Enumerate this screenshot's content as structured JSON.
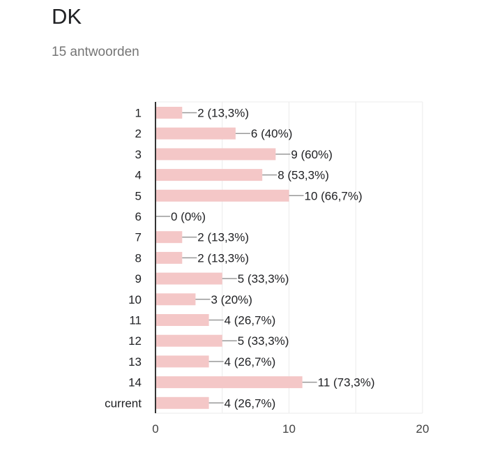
{
  "header": {
    "title": "DK",
    "response_count": "15 antwoorden"
  },
  "colors": {
    "bar": "#f4c7c7",
    "axis": "#333333",
    "grid": "#ebebeb",
    "leader": "#999999"
  },
  "chart_data": {
    "type": "bar",
    "orientation": "horizontal",
    "title": "DK",
    "subtitle": "15 antwoorden",
    "categories": [
      "1",
      "2",
      "3",
      "4",
      "5",
      "6",
      "7",
      "8",
      "9",
      "10",
      "11",
      "12",
      "13",
      "14",
      "current"
    ],
    "values": [
      2,
      6,
      9,
      8,
      10,
      0,
      2,
      2,
      5,
      3,
      4,
      5,
      4,
      11,
      4
    ],
    "data_labels": [
      "2 (13,3%)",
      "6 (40%)",
      "9 (60%)",
      "8 (53,3%)",
      "10 (66,7%)",
      "0 (0%)",
      "2 (13,3%)",
      "2 (13,3%)",
      "5 (33,3%)",
      "3 (20%)",
      "4 (26,7%)",
      "5 (33,3%)",
      "4 (26,7%)",
      "11 (73,3%)",
      "4 (26,7%)"
    ],
    "xlim": [
      0,
      20
    ],
    "x_ticks": [
      "0",
      "10",
      "20"
    ],
    "grid": true,
    "legend": "none"
  }
}
